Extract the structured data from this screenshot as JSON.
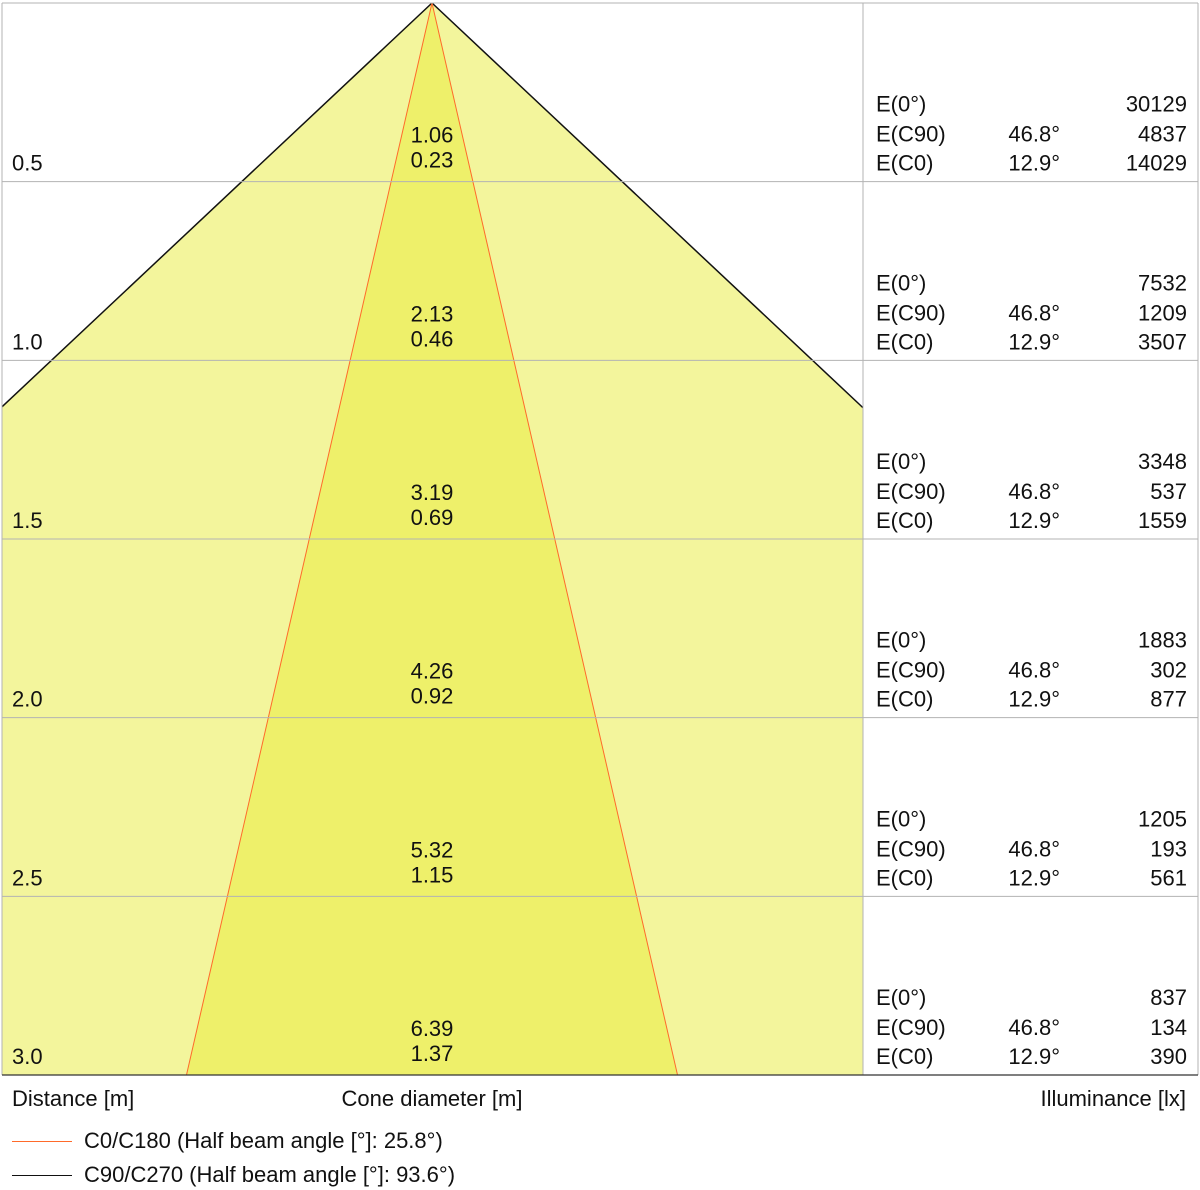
{
  "chart_data": {
    "type": "cone diagram",
    "distances": [
      "0.5",
      "1.0",
      "1.5",
      "2.0",
      "2.5",
      "3.0"
    ],
    "distance_values": [
      0.5,
      1.0,
      1.5,
      2.0,
      2.5,
      3.0
    ],
    "cone_c90_diameters": [
      "1.06",
      "2.13",
      "3.19",
      "4.26",
      "5.32",
      "6.39"
    ],
    "cone_c0_diameters": [
      "0.23",
      "0.46",
      "0.69",
      "0.92",
      "1.15",
      "1.37"
    ],
    "half_beam_angle_c0": 25.8,
    "half_beam_angle_c90": 93.6,
    "illuminance_rows": [
      {
        "e0": "30129",
        "c90_angle": "46.8°",
        "c90": "4837",
        "c0_angle": "12.9°",
        "c0": "14029"
      },
      {
        "e0": "7532",
        "c90_angle": "46.8°",
        "c90": "1209",
        "c0_angle": "12.9°",
        "c0": "3507"
      },
      {
        "e0": "3348",
        "c90_angle": "46.8°",
        "c90": "537",
        "c0_angle": "12.9°",
        "c0": "1559"
      },
      {
        "e0": "1883",
        "c90_angle": "46.8°",
        "c90": "302",
        "c0_angle": "12.9°",
        "c0": "877"
      },
      {
        "e0": "1205",
        "c90_angle": "46.8°",
        "c90": "193",
        "c0_angle": "12.9°",
        "c0": "561"
      },
      {
        "e0": "837",
        "c90_angle": "46.8°",
        "c90": "134",
        "c0_angle": "12.9°",
        "c0": "390"
      }
    ],
    "row_labels": {
      "e0": "E(0°)",
      "c90": "E(C90)",
      "c0": "E(C0)"
    },
    "xlabel_left": "Distance [m]",
    "xlabel_center": "Cone diameter [m]",
    "xlabel_right": "Illuminance [lx]"
  },
  "legend": {
    "c0_label": "C0/C180 (Half beam angle [°]: 25.8°)",
    "c90_label": "C90/C270 (Half beam angle [°]: 93.6°)"
  },
  "colors": {
    "outer_cone": "#f3f59c",
    "inner_cone": "#eef06a",
    "c0_line": "#ff6a2a",
    "c90_line": "#111111",
    "grid": "#b3b3b3"
  }
}
